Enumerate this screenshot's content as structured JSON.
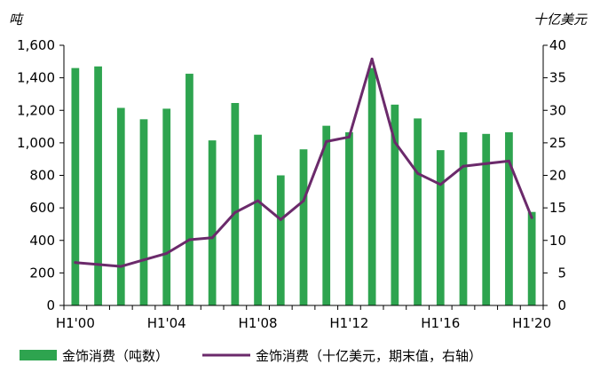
{
  "chart_data": {
    "type": "bar",
    "left_unit": "吨",
    "right_unit": "十亿美元",
    "categories": [
      "H1'00",
      "H1'01",
      "H1'02",
      "H1'03",
      "H1'04",
      "H1'05",
      "H1'06",
      "H1'07",
      "H1'08",
      "H1'09",
      "H1'10",
      "H1'11",
      "H1'12",
      "H1'13",
      "H1'14",
      "H1'15",
      "H1'16",
      "H1'17",
      "H1'18",
      "H1'19",
      "H1'20"
    ],
    "x_tick_labels": [
      "H1'00",
      "H1'04",
      "H1'08",
      "H1'12",
      "H1'16",
      "H1'20"
    ],
    "series": [
      {
        "name": "金饰消费（吨数）",
        "type": "bar",
        "axis": "left",
        "color": "#2ea44f",
        "values": [
          1460,
          1470,
          1215,
          1145,
          1210,
          1425,
          1015,
          1245,
          1050,
          800,
          960,
          1105,
          1065,
          1460,
          1235,
          1150,
          955,
          1065,
          1055,
          1065,
          575
        ]
      },
      {
        "name": "金饰消费（十亿美元，期末值，右轴）",
        "type": "line",
        "axis": "right",
        "color": "#6b2a6b",
        "values": [
          6.6,
          6.3,
          6.0,
          7.0,
          8.0,
          10.1,
          10.4,
          14.3,
          16.1,
          13.2,
          16.1,
          25.2,
          25.9,
          37.9,
          25.1,
          20.3,
          18.6,
          21.4,
          21.8,
          22.2,
          13.5
        ]
      }
    ],
    "y_left": {
      "lim": [
        0,
        1600
      ],
      "ticks": [
        "0",
        "200",
        "400",
        "600",
        "800",
        "1,000",
        "1,200",
        "1,400",
        "1,600"
      ]
    },
    "y_right": {
      "lim": [
        0,
        40
      ],
      "ticks": [
        "0",
        "5",
        "10",
        "15",
        "20",
        "25",
        "30",
        "35",
        "40"
      ]
    },
    "grid": false,
    "legend_position": "bottom"
  }
}
